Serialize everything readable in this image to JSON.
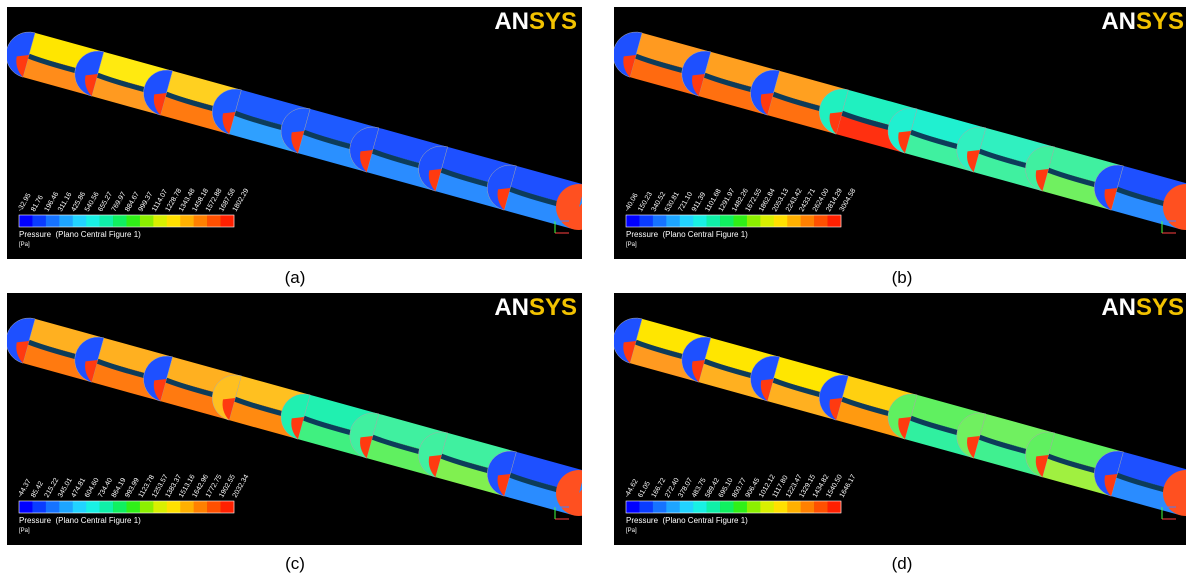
{
  "panels": [
    {
      "logo": "ANSYS",
      "legend_labels": [
        "-32.95",
        "81.76",
        "196.46",
        "311.16",
        "425.86",
        "540.56",
        "655.27",
        "769.97",
        "884.67",
        "999.37",
        "1114.07",
        "1228.78",
        "1343.48",
        "1458.18",
        "1572.88",
        "1687.58",
        "1802.29"
      ],
      "legend_title": "Pressure  (Plano Central Figure 1)",
      "legend_unit": "[Pa]",
      "caption": "(a)"
    },
    {
      "logo": "ANSYS",
      "legend_labels": [
        "-40.06",
        "150.23",
        "340.52",
        "530.81",
        "721.10",
        "911.39",
        "1101.68",
        "1291.97",
        "1482.26",
        "1672.55",
        "1862.84",
        "2053.13",
        "2243.42",
        "2433.71",
        "2624.00",
        "2814.29",
        "3004.58"
      ],
      "legend_title": "Pressure  (Plano Central Figure 1)",
      "legend_unit": "[Pa]",
      "caption": "(b)"
    },
    {
      "logo": "ANSYS",
      "legend_labels": [
        "-44.37",
        "85.42",
        "215.22",
        "345.01",
        "474.81",
        "604.60",
        "734.40",
        "864.19",
        "993.99",
        "1123.78",
        "1253.57",
        "1383.37",
        "1513.16",
        "1642.96",
        "1772.75",
        "1902.55",
        "2032.34"
      ],
      "legend_title": "Pressure  (Plano Central Figure 1)",
      "legend_unit": "[Pa]",
      "caption": "(c)"
    },
    {
      "logo": "ANSYS",
      "legend_labels": [
        "-44.62",
        "61.05",
        "166.72",
        "272.40",
        "378.07",
        "483.75",
        "589.42",
        "695.10",
        "800.77",
        "906.45",
        "1012.12",
        "1117.80",
        "1223.47",
        "1329.15",
        "1434.82",
        "1540.50",
        "1646.17"
      ],
      "legend_title": "Pressure  (Plano Central Figure 1)",
      "legend_unit": "[Pa]",
      "caption": "(d)"
    }
  ]
}
